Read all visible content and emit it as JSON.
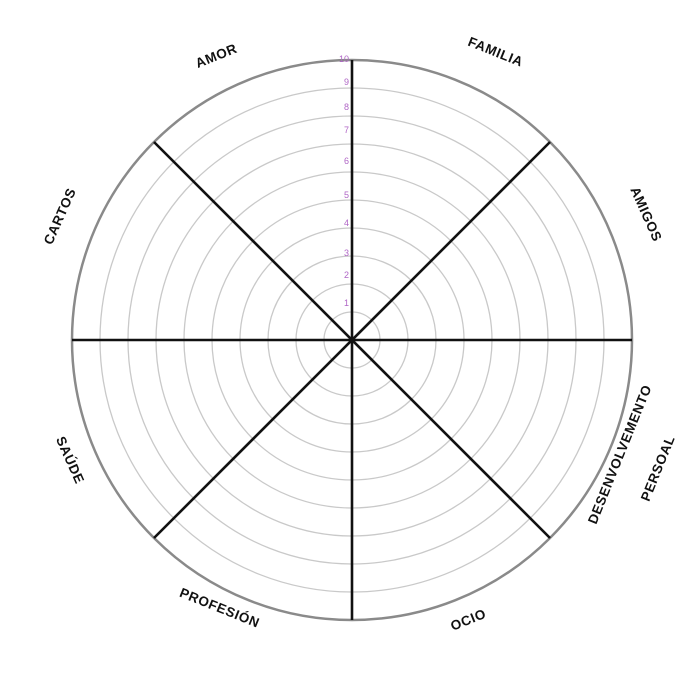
{
  "wheel": {
    "scale": {
      "labels": [
        "1",
        "2",
        "3",
        "4",
        "5",
        "6",
        "7",
        "8",
        "9",
        "10"
      ],
      "color": "#b066c6"
    },
    "segments": [
      {
        "label": "FAMILIA"
      },
      {
        "label": "AMIGOS"
      },
      {
        "label": "DESENVOLVEMENTO",
        "label2": "PERSOAL"
      },
      {
        "label": "OCIO"
      },
      {
        "label": "PROFESIÓN"
      },
      {
        "label": "SAÚDE"
      },
      {
        "label": "CARTOS"
      },
      {
        "label": "AMOR"
      }
    ],
    "colors": {
      "outer_ring": "#8a8a8a",
      "inner_rings": "#c9c9c9",
      "spokes": "#111111"
    }
  }
}
